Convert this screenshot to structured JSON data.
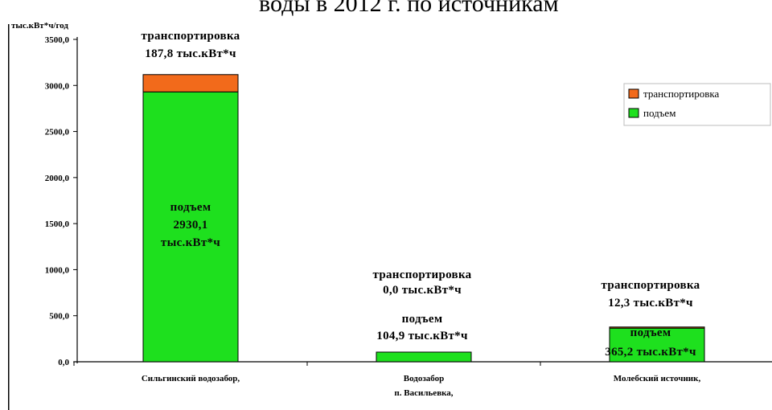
{
  "page_title_fragment": "воды в 2012 г. по источникам",
  "chart_data": {
    "type": "bar",
    "stacked": true,
    "ylabel": "тыс.кВт*ч/год",
    "ylim": [
      0,
      3500
    ],
    "yticks": [
      0,
      500,
      1000,
      1500,
      2000,
      2500,
      3000,
      3500
    ],
    "ytick_labels": [
      "0,0",
      "500,0",
      "1000,0",
      "1500,0",
      "2000,0",
      "2500,0",
      "3000,0",
      "3500,0"
    ],
    "grid": false,
    "legend_position": "top-right",
    "categories": [
      [
        "Сильгинский водозабор,"
      ],
      [
        "Водозабор",
        "п. Васильевка,"
      ],
      [
        "Молебский источник,"
      ]
    ],
    "series": [
      {
        "name": "подъем",
        "color": "#1ee01e",
        "values": [
          2930.1,
          104.9,
          365.2
        ]
      },
      {
        "name": "транспортировка",
        "color": "#f26a1b",
        "values": [
          187.8,
          0.0,
          12.3
        ]
      }
    ],
    "annotations": [
      {
        "category_index": 0,
        "series": "транспортировка",
        "lines": [
          "транспортировка",
          "187,8 тыс.кВт*ч"
        ]
      },
      {
        "category_index": 0,
        "series": "подъем",
        "lines": [
          "подъем",
          "2930,1",
          "тыс.кВт*ч"
        ]
      },
      {
        "category_index": 1,
        "series": "транспортировка",
        "lines": [
          "транспортировка",
          "0,0 тыс.кВт*ч"
        ]
      },
      {
        "category_index": 1,
        "series": "подъем",
        "lines": [
          "подъем",
          "104,9 тыс.кВт*ч"
        ]
      },
      {
        "category_index": 2,
        "series": "транспортировка",
        "lines": [
          "транспортировка",
          "12,3 тыс.кВт*ч"
        ]
      },
      {
        "category_index": 2,
        "series": "подъем",
        "lines": [
          "подъем",
          "365,2 тыс.кВт*ч"
        ]
      }
    ]
  }
}
